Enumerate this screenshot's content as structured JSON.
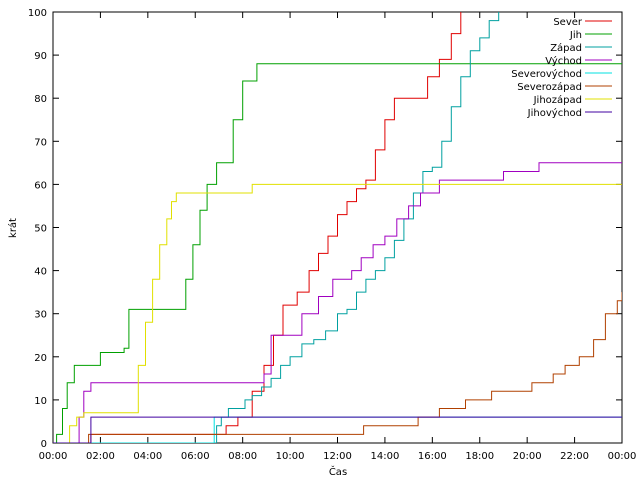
{
  "chart_data": {
    "type": "line",
    "xlabel": "Čas",
    "ylabel": "krát",
    "xlim": [
      0,
      24
    ],
    "ylim": [
      0,
      100
    ],
    "x_ticks": [
      {
        "value": 0,
        "label": "00:00"
      },
      {
        "value": 2,
        "label": "02:00"
      },
      {
        "value": 4,
        "label": "04:00"
      },
      {
        "value": 6,
        "label": "06:00"
      },
      {
        "value": 8,
        "label": "08:00"
      },
      {
        "value": 10,
        "label": "10:00"
      },
      {
        "value": 12,
        "label": "12:00"
      },
      {
        "value": 14,
        "label": "14:00"
      },
      {
        "value": 16,
        "label": "16:00"
      },
      {
        "value": 18,
        "label": "18:00"
      },
      {
        "value": 20,
        "label": "20:00"
      },
      {
        "value": 22,
        "label": "22:00"
      },
      {
        "value": 24,
        "label": "00:00"
      }
    ],
    "y_ticks": [
      0,
      10,
      20,
      30,
      40,
      50,
      60,
      70,
      80,
      90,
      100
    ],
    "grid": false,
    "legend_position": "top-right",
    "series": [
      {
        "name": "Sever",
        "color": "#e00000",
        "x": [
          0,
          1.4,
          1.6,
          6.9,
          7.3,
          7.8,
          8.4,
          8.9,
          9.3,
          9.7,
          10.0,
          10.3,
          10.8,
          11.2,
          11.6,
          12.0,
          12.4,
          12.8,
          13.2,
          13.6,
          14.0,
          14.4,
          14.8,
          15.3,
          15.8,
          16.3,
          16.8,
          17.2
        ],
        "y": [
          0,
          0,
          2,
          2,
          4,
          6,
          12,
          18,
          25,
          32,
          32,
          35,
          40,
          44,
          48,
          53,
          56,
          59,
          61,
          68,
          75,
          80,
          80,
          80,
          85,
          89,
          95,
          100
        ]
      },
      {
        "name": "Jih",
        "color": "#00a000",
        "x": [
          0,
          0.15,
          0.4,
          0.6,
          0.9,
          1.8,
          2.0,
          3.0,
          3.2,
          5.3,
          5.6,
          5.9,
          6.2,
          6.5,
          6.9,
          7.1,
          7.6,
          8.0,
          8.3,
          8.6,
          24
        ],
        "y": [
          0,
          2,
          8,
          14,
          18,
          18,
          21,
          22,
          31,
          31,
          38,
          46,
          54,
          60,
          65,
          65,
          75,
          84,
          84,
          88,
          88
        ]
      },
      {
        "name": "Západ",
        "color": "#00a0a0",
        "x": [
          0,
          6.7,
          6.9,
          7.1,
          7.4,
          7.8,
          8.1,
          8.4,
          8.8,
          9.2,
          9.6,
          10.0,
          10.5,
          11.0,
          11.5,
          12.0,
          12.4,
          12.8,
          13.2,
          13.6,
          14.0,
          14.4,
          14.8,
          15.2,
          15.6,
          16.0,
          16.4,
          16.8,
          17.2,
          17.6,
          18.0,
          18.4,
          18.8
        ],
        "y": [
          0,
          0,
          4,
          6,
          8,
          8,
          10,
          11,
          13,
          15,
          18,
          20,
          23,
          24,
          26,
          30,
          31,
          35,
          38,
          40,
          43,
          47,
          52,
          58,
          63,
          64,
          70,
          78,
          85,
          91,
          94,
          98,
          100
        ]
      },
      {
        "name": "Východ",
        "color": "#a000c0",
        "x": [
          0,
          0.9,
          1.1,
          1.3,
          1.6,
          8.5,
          8.9,
          9.2,
          10.2,
          10.5,
          11.2,
          11.8,
          12.6,
          13.0,
          13.5,
          14.0,
          14.5,
          15.0,
          15.5,
          15.9,
          16.3,
          19.0,
          20.5,
          24
        ],
        "y": [
          0,
          0,
          6,
          12,
          14,
          14,
          16,
          25,
          25,
          30,
          34,
          38,
          40,
          43,
          46,
          48,
          52,
          55,
          58,
          58,
          61,
          63,
          65,
          65
        ]
      },
      {
        "name": "Severovýchod",
        "color": "#00e0e0",
        "x": [
          0,
          6.6,
          6.8,
          24
        ],
        "y": [
          0,
          0,
          6,
          6
        ]
      },
      {
        "name": "Severozápad",
        "color": "#b04000",
        "x": [
          0,
          1.3,
          1.5,
          2.9,
          3.1,
          12.9,
          13.1,
          15.2,
          15.4,
          16.0,
          16.3,
          17.1,
          17.4,
          18.1,
          18.5,
          19.2,
          20.2,
          21.1,
          21.6,
          22.2,
          22.8,
          23.3,
          23.8,
          24
        ],
        "y": [
          0,
          0,
          2,
          2,
          2,
          2,
          4,
          4,
          6,
          6,
          8,
          8,
          10,
          10,
          12,
          12,
          14,
          16,
          18,
          20,
          24,
          30,
          33,
          35
        ]
      },
      {
        "name": "Jihozápad",
        "color": "#e0e000",
        "x": [
          0,
          0.5,
          0.7,
          1.0,
          1.3,
          3.3,
          3.6,
          3.9,
          4.2,
          4.5,
          4.8,
          5.0,
          5.2,
          8.1,
          8.4,
          24
        ],
        "y": [
          0,
          0,
          4,
          6,
          7,
          7,
          18,
          28,
          38,
          46,
          52,
          56,
          58,
          58,
          60,
          60
        ]
      },
      {
        "name": "Jihovýchod",
        "color": "#4000a0",
        "x": [
          0,
          0.3,
          1.4,
          1.6,
          24
        ],
        "y": [
          0,
          0,
          0,
          6,
          6
        ]
      }
    ]
  }
}
